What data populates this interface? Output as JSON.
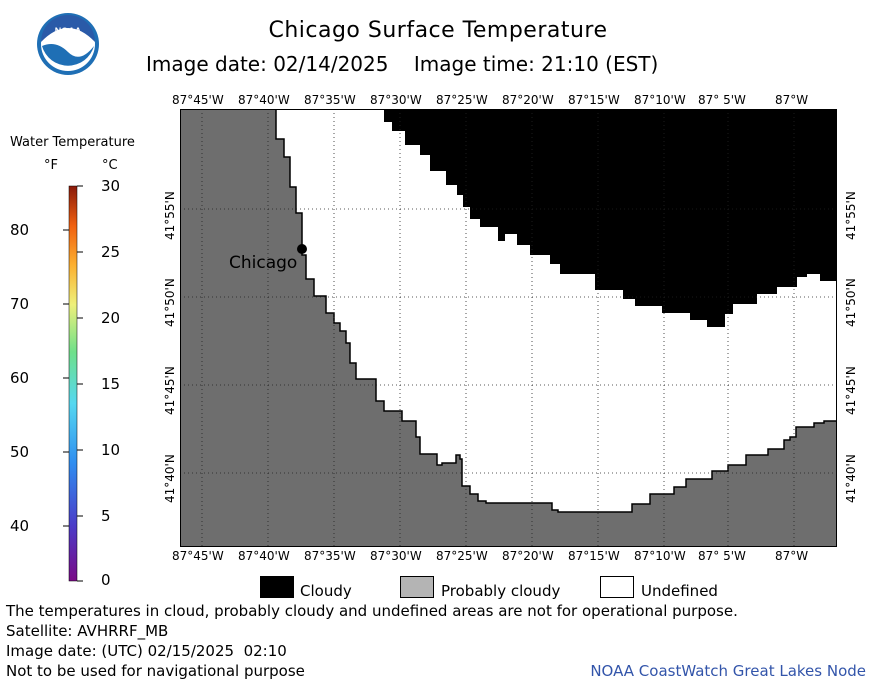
{
  "header": {
    "title": "Chicago Surface Temperature",
    "date_line": "Image date: 02/14/2025    Image time: 21:10 (EST)",
    "logo_text": "NOAA"
  },
  "legend": {
    "title": "Water Temperature",
    "unit_f": "°F",
    "unit_c": "°C",
    "f_ticks": [
      "80",
      "70",
      "60",
      "50",
      "40"
    ],
    "c_ticks": [
      "30",
      "25",
      "20",
      "15",
      "10",
      "5",
      "0"
    ]
  },
  "map": {
    "lon_labels": [
      "87°45'W",
      "87°40'W",
      "87°35'W",
      "87°30'W",
      "87°25'W",
      "87°20'W",
      "87°15'W",
      "87°10'W",
      "87° 5'W",
      "87°W"
    ],
    "lat_labels": [
      "41°55'N",
      "41°50'N",
      "41°45'N",
      "41°40'N"
    ],
    "city_label": "Chicago",
    "colors": {
      "land": "#6e6e6e",
      "cloudy": "#000000",
      "probably_cloudy": "#b4b4b4",
      "undefined": "#ffffff"
    }
  },
  "key": {
    "cloudy": "Cloudy",
    "probably_cloudy": "Probably cloudy",
    "undefined": "Undefined"
  },
  "footer": {
    "note": "The temperatures in cloud, probably cloudy and undefined areas are not for operational purpose.",
    "satellite": "Satellite: AVHRRF_MB",
    "utc_date": "Image date: (UTC) 02/15/2025  02:10",
    "nav_note": "Not to be used for navigational purpose",
    "credit": "NOAA CoastWatch Great Lakes Node"
  }
}
